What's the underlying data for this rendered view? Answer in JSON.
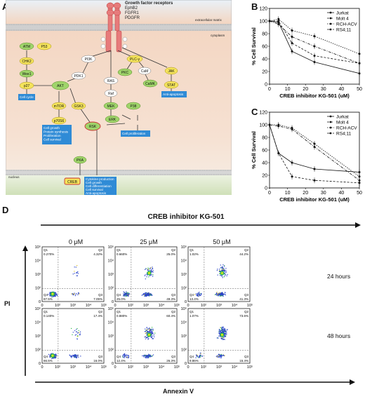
{
  "panels": {
    "A": "A",
    "B": "B",
    "C": "C",
    "D": "D"
  },
  "pathway": {
    "receptors_title": "Growth factor receptors",
    "receptors": [
      "EphB2",
      "FGFR1",
      "PDGFR"
    ],
    "extracellular": "extracellular matrix",
    "cytoplasm": "cytoplasm",
    "nucleus": "nucleus",
    "nodes": {
      "atm": "ATM",
      "p53": "P53",
      "chk2": "CHK2",
      "wee": "Wee1",
      "p27": "p27",
      "akt": "AKT",
      "pi3k": "PI3K",
      "pdk1": "PDK1",
      "plc": "PLC-γ",
      "pkc": "PKC",
      "cam": "CaM",
      "camk": "CaMK",
      "ras": "RAS",
      "raf": "Raf",
      "mek": "MEK",
      "p38": "P38",
      "erk": "ERK",
      "rsk": "RSK",
      "mtor": "mTOR",
      "p70": "p70S6",
      "gsk3": "GSK3",
      "jak": "JAK",
      "stat": "STAT",
      "pka": "PKA",
      "creb": "CREB"
    },
    "outcomes": {
      "cycle": "Cell cycle",
      "growth": "Cell growth\nProtein synthesis\nProliferation\nCell survival",
      "prolif": "Cell proliferation",
      "antiapop": "Anti-apoptosis",
      "creb_out": "Cytokine production\nCell growth\nCell differentiation\nCell survival\nAnti-apoptosis"
    }
  },
  "chart_data": [
    {
      "type": "line",
      "xlabel": "CREB inhibitor KG-501 (uM)",
      "ylabel": "% Cell Survival",
      "ylim": [
        0,
        120
      ],
      "xlim": [
        0,
        50
      ],
      "yticks": [
        0,
        20,
        40,
        60,
        80,
        100,
        120
      ],
      "xticks": [
        0,
        10,
        20,
        30,
        40,
        50
      ],
      "legend_position": "top-right",
      "x": [
        0,
        5,
        12.5,
        25,
        50
      ],
      "series": [
        {
          "name": "Jurkat",
          "values": [
            100,
            98,
            52,
            35,
            17
          ]
        },
        {
          "name": "Molt 4",
          "values": [
            100,
            100,
            65,
            45,
            33
          ]
        },
        {
          "name": "RCH-ACV",
          "values": [
            100,
            103,
            85,
            76,
            48
          ]
        },
        {
          "name": "RS4;11",
          "values": [
            100,
            95,
            75,
            60,
            33
          ]
        }
      ]
    },
    {
      "type": "line",
      "xlabel": "CREB inhibitor KG-501 (uM)",
      "ylabel": "% Cell Survival",
      "ylim": [
        0,
        120
      ],
      "xlim": [
        0,
        50
      ],
      "yticks": [
        0,
        20,
        40,
        60,
        80,
        100,
        120
      ],
      "xticks": [
        0,
        10,
        20,
        30,
        40,
        50
      ],
      "legend_position": "top-right",
      "x": [
        0,
        5,
        12.5,
        25,
        50
      ],
      "series": [
        {
          "name": "Jurkat",
          "values": [
            100,
            55,
            40,
            30,
            25
          ]
        },
        {
          "name": "Molt 4",
          "values": [
            100,
            55,
            18,
            12,
            8
          ]
        },
        {
          "name": "RCH-ACV",
          "values": [
            100,
            100,
            95,
            70,
            18
          ]
        },
        {
          "name": "RS4;11",
          "values": [
            100,
            98,
            93,
            65,
            12
          ]
        }
      ]
    }
  ],
  "flow": {
    "title": "CREB inhibitor KG-501",
    "conditions": [
      "0 μM",
      "25 μM",
      "50 μM"
    ],
    "times": [
      "24 hours",
      "48 hours"
    ],
    "yaxis": "PI",
    "xaxis": "Annexin V",
    "plots": [
      {
        "q1": "0.270%",
        "q2": "4.32%",
        "q3": "7.05%",
        "q4": "87.5%"
      },
      {
        "q1": "0.660%",
        "q2": "25.0%",
        "q3": "49.3%",
        "q4": "25.0%"
      },
      {
        "q1": "1.02%",
        "q2": "44.2%",
        "q3": "41.3%",
        "q4": "13.4%"
      },
      {
        "q1": "0.140%",
        "q2": "17.4%",
        "q3": "16.0%",
        "q4": "66.5%"
      },
      {
        "q1": "0.880%",
        "q2": "60.4%",
        "q3": "26.3%",
        "q4": "12.4%"
      },
      {
        "q1": "1.07%",
        "q2": "73.6%",
        "q3": "15.4%",
        "q4": "9.86%"
      }
    ]
  }
}
